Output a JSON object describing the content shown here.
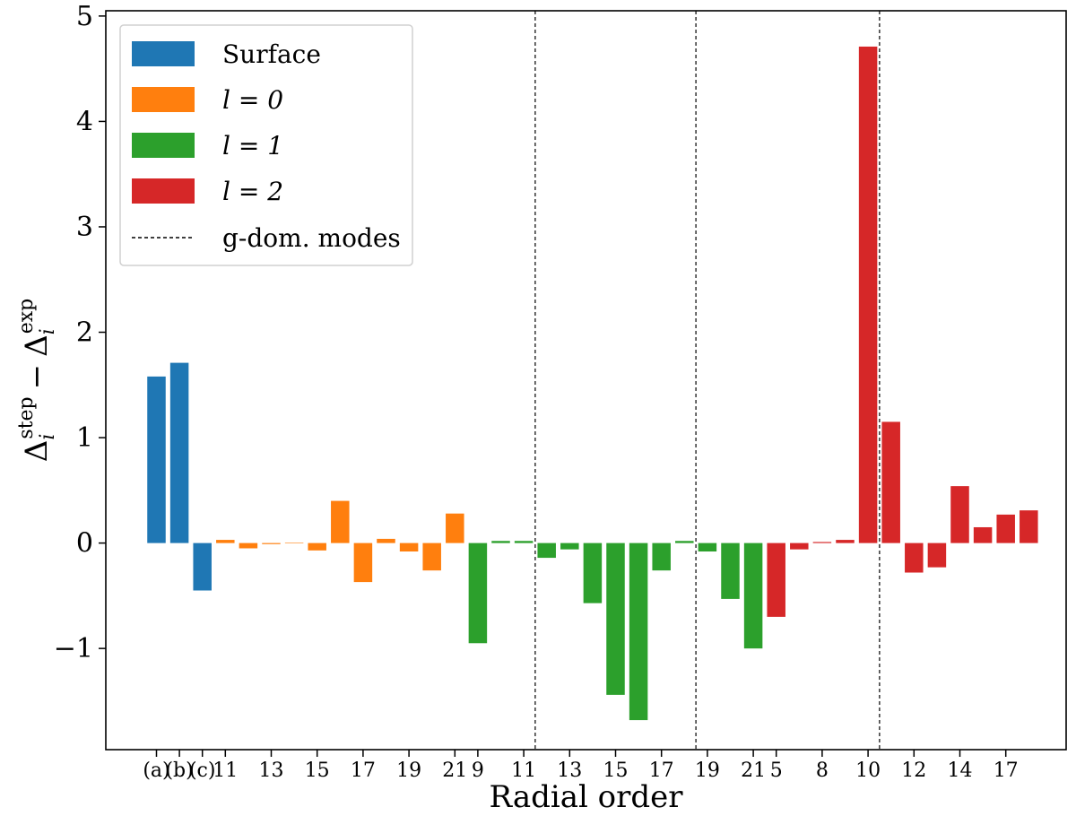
{
  "chart_data": {
    "type": "bar",
    "title": "",
    "xlabel": "Radial order",
    "ylabel": {
      "main": "Δ",
      "sub": "i",
      "sup": "step",
      "minus": "−",
      "main2": "Δ",
      "sub2": "i",
      "sup2": "exp"
    },
    "ylim": [
      -1.96,
      5.05
    ],
    "yticks": [
      -1,
      0,
      1,
      2,
      3,
      4,
      5
    ],
    "ytick_labels": [
      "−1",
      "0",
      "1",
      "2",
      "3",
      "4",
      "5"
    ],
    "grid": false,
    "legend_position": "top-left",
    "colors": {
      "Surface": "#1f77b4",
      "l0": "#ff7f0e",
      "l1": "#2ca02c",
      "l2": "#d62728",
      "axis": "#000000"
    },
    "series": [
      {
        "name": "Surface",
        "legend_label": "Surface",
        "legend_italic": false,
        "color": "#1f77b4",
        "values": [
          1.58,
          1.71,
          -0.45
        ]
      },
      {
        "name": "l0",
        "legend_label": "l = 0",
        "legend_italic": true,
        "color": "#ff7f0e",
        "values": [
          0.03,
          -0.05,
          -0.01,
          0.005,
          -0.07,
          0.4,
          -0.37,
          0.04,
          -0.08,
          -0.26,
          0.28
        ]
      },
      {
        "name": "l1",
        "legend_label": "l = 1",
        "legend_italic": true,
        "color": "#2ca02c",
        "values": [
          -0.95,
          0.02,
          0.02,
          -0.14,
          -0.06,
          -0.57,
          -1.44,
          -1.68,
          -0.26,
          0.02,
          -0.08,
          -0.53,
          -1.0
        ]
      },
      {
        "name": "l2",
        "legend_label": "l = 2",
        "legend_italic": true,
        "color": "#d62728",
        "values": [
          -0.7,
          -0.06,
          0.01,
          0.03,
          4.71,
          1.15,
          -0.28,
          -0.23,
          0.54,
          0.15,
          0.27,
          0.31
        ]
      }
    ],
    "xtick_labels": [
      {
        "index": 0,
        "label": "(a)"
      },
      {
        "index": 1,
        "label": "(b)"
      },
      {
        "index": 2,
        "label": "(c)"
      },
      {
        "index": 3,
        "label": "11"
      },
      {
        "index": 5,
        "label": "13"
      },
      {
        "index": 7,
        "label": "15"
      },
      {
        "index": 9,
        "label": "17"
      },
      {
        "index": 11,
        "label": "19"
      },
      {
        "index": 13,
        "label": "21"
      },
      {
        "index": 14,
        "label": "9"
      },
      {
        "index": 16,
        "label": "11"
      },
      {
        "index": 18,
        "label": "13"
      },
      {
        "index": 20,
        "label": "15"
      },
      {
        "index": 22,
        "label": "17"
      },
      {
        "index": 24,
        "label": "19"
      },
      {
        "index": 26,
        "label": "21"
      },
      {
        "index": 27,
        "label": "5"
      },
      {
        "index": 29,
        "label": "8"
      },
      {
        "index": 31,
        "label": "10"
      },
      {
        "index": 33,
        "label": "12"
      },
      {
        "index": 35,
        "label": "14"
      },
      {
        "index": 37,
        "label": "17"
      }
    ],
    "gdom_lines": [
      16.5,
      23.5,
      31.5
    ],
    "gdom_label": "g-dom. modes"
  }
}
